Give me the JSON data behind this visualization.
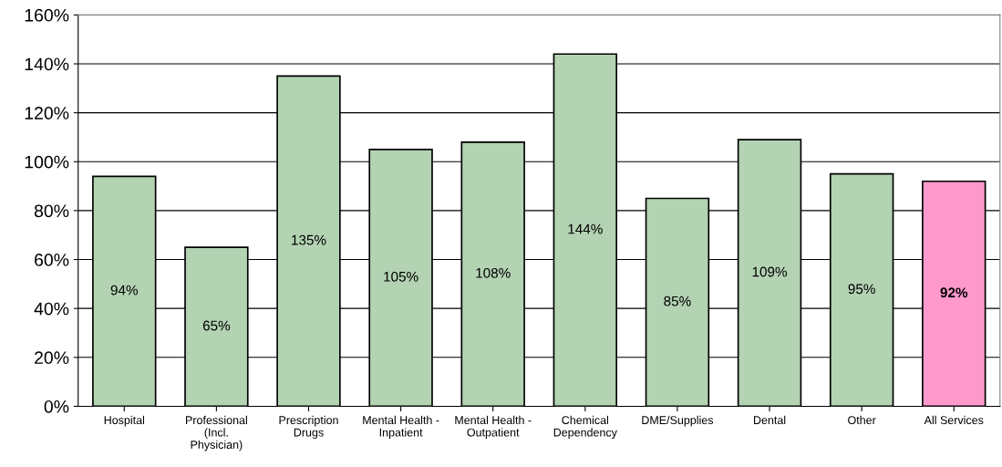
{
  "chart_data": {
    "type": "bar",
    "categories": [
      "Hospital",
      "Professional\n(Incl.\nPhysician)",
      "Prescription\nDrugs",
      "Mental Health -\nInpatient",
      "Mental Health -\nOutpatient",
      "Chemical\nDependency",
      "DME/Supplies",
      "Dental",
      "Other",
      "All Services"
    ],
    "values": [
      94,
      65,
      135,
      105,
      108,
      144,
      85,
      109,
      95,
      92
    ],
    "value_labels": [
      "94%",
      "65%",
      "135%",
      "105%",
      "108%",
      "144%",
      "85%",
      "109%",
      "95%",
      "92%"
    ],
    "colors": [
      "#b3d3b3",
      "#b3d3b3",
      "#b3d3b3",
      "#b3d3b3",
      "#b3d3b3",
      "#b3d3b3",
      "#b3d3b3",
      "#b3d3b3",
      "#b3d3b3",
      "#ff99cc"
    ],
    "ylim": [
      0,
      160
    ],
    "yticks": [
      {
        "value": 0,
        "label": "0%"
      },
      {
        "value": 20,
        "label": "20%"
      },
      {
        "value": 40,
        "label": "40%"
      },
      {
        "value": 60,
        "label": "60%"
      },
      {
        "value": 80,
        "label": "80%"
      },
      {
        "value": 100,
        "label": "100%"
      },
      {
        "value": 120,
        "label": "120%"
      },
      {
        "value": 140,
        "label": "140%"
      },
      {
        "value": 160,
        "label": "160%"
      }
    ],
    "grid": "y"
  }
}
